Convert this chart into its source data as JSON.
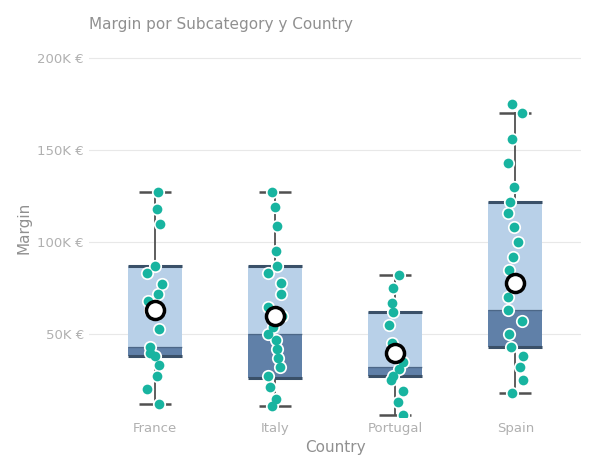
{
  "title": "Margin por Subcategory y Country",
  "xlabel": "Country",
  "ylabel": "Margin",
  "categories": [
    "France",
    "Italy",
    "Portugal",
    "Spain"
  ],
  "ylim": [
    5000,
    210000
  ],
  "yticks": [
    50000,
    100000,
    150000,
    200000
  ],
  "ytick_labels": [
    "50K €",
    "100K €",
    "150K €",
    "200K €"
  ],
  "background_color": "#ffffff",
  "plot_bg_color": "#ffffff",
  "box_color_upper": "#b8d0e8",
  "box_color_lower": "#6080a8",
  "box_border_color": "#3a5068",
  "whisker_color": "#505050",
  "mean_dot_color": "#000000",
  "dot_color": "#18b4a0",
  "dot_edge_color": "#ffffff",
  "boxes": [
    {
      "country": "France",
      "whisker_low": 12000,
      "q1": 38000,
      "median": 43000,
      "q3": 87000,
      "whisker_high": 127000,
      "mean": 63000,
      "dots": [
        12000,
        20000,
        27000,
        33000,
        38000,
        40000,
        43000,
        53000,
        63000,
        68000,
        72000,
        77000,
        83000,
        87000,
        110000,
        118000,
        127000
      ]
    },
    {
      "country": "Italy",
      "whisker_low": 11000,
      "q1": 26000,
      "median": 50000,
      "q3": 87000,
      "whisker_high": 127000,
      "mean": 60000,
      "dots": [
        11000,
        15000,
        21000,
        27000,
        32000,
        37000,
        42000,
        47000,
        50000,
        54000,
        60000,
        65000,
        72000,
        78000,
        83000,
        87000,
        95000,
        109000,
        119000,
        127000
      ]
    },
    {
      "country": "Portugal",
      "whisker_low": 6000,
      "q1": 27000,
      "median": 32000,
      "q3": 62000,
      "whisker_high": 82000,
      "mean": 40000,
      "dots": [
        6000,
        13000,
        19000,
        25000,
        27000,
        31000,
        35000,
        45000,
        55000,
        62000,
        67000,
        75000,
        82000
      ]
    },
    {
      "country": "Spain",
      "whisker_low": 18000,
      "q1": 43000,
      "median": 63000,
      "q3": 122000,
      "whisker_high": 170000,
      "mean": 78000,
      "dots": [
        18000,
        25000,
        32000,
        38000,
        43000,
        50000,
        57000,
        63000,
        70000,
        78000,
        85000,
        92000,
        100000,
        108000,
        116000,
        122000,
        130000,
        143000,
        156000,
        170000,
        175000
      ]
    }
  ],
  "box_width": 0.45,
  "title_color": "#909090",
  "axis_label_color": "#909090",
  "tick_color": "#b0b0b0",
  "grid_color": "#e8e8e8",
  "title_fontsize": 11,
  "label_fontsize": 11,
  "tick_fontsize": 9.5
}
